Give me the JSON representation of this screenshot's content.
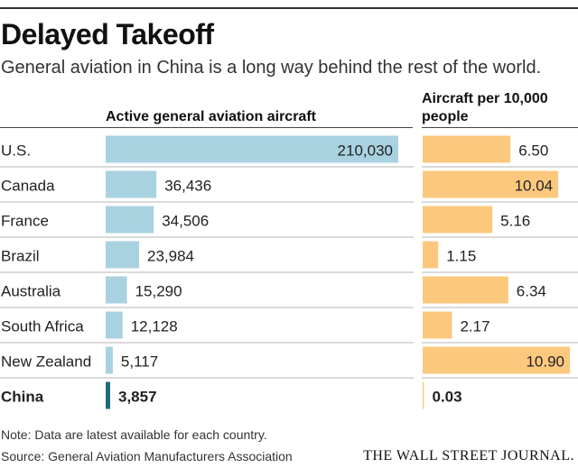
{
  "title": "Delayed Takeoff",
  "subtitle": "General aviation in China is a long way behind the rest of the world.",
  "colors": {
    "aircraft_bar": "#a9d2e1",
    "highlight_bar": "#1e6b80",
    "per_capita_bar": "#fcc87e",
    "row_rule": "#b5b5b5"
  },
  "chart_data": [
    {
      "type": "bar",
      "orientation": "horizontal",
      "title": "Active general aviation aircraft",
      "categories": [
        "U.S.",
        "Canada",
        "France",
        "Brazil",
        "Australia",
        "South Africa",
        "New Zealand",
        "China"
      ],
      "values": [
        210030,
        36436,
        34506,
        23984,
        15290,
        12128,
        5117,
        3857
      ],
      "value_labels": [
        "210,030",
        "36,436",
        "34,506",
        "23,984",
        "15,290",
        "12,128",
        "5,117",
        "3,857"
      ],
      "highlight": "China",
      "xlim": [
        0,
        210030
      ]
    },
    {
      "type": "bar",
      "orientation": "horizontal",
      "title": "Aircraft per 10,000 people",
      "categories": [
        "U.S.",
        "Canada",
        "France",
        "Brazil",
        "Australia",
        "South Africa",
        "New Zealand",
        "China"
      ],
      "values": [
        6.5,
        10.04,
        5.16,
        1.15,
        6.34,
        2.17,
        10.9,
        0.03
      ],
      "value_labels": [
        "6.50",
        "10.04",
        "5.16",
        "1.15",
        "6.34",
        "2.17",
        "10.90",
        "0.03"
      ],
      "highlight": "China",
      "xlim": [
        0,
        10.9
      ]
    }
  ],
  "note": "Note: Data are latest available for each country.",
  "source": "Source: General Aviation Manufacturers Association",
  "brand": "THE WALL STREET JOURNAL."
}
